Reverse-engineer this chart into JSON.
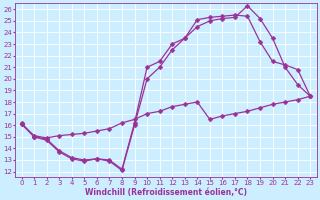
{
  "xlabel": "Windchill (Refroidissement éolien,°C)",
  "bg_color": "#cceeff",
  "grid_color": "#ffffff",
  "line_color": "#993399",
  "xlim": [
    -0.5,
    23.5
  ],
  "ylim": [
    11.5,
    26.5
  ],
  "xticks": [
    0,
    1,
    2,
    3,
    4,
    5,
    6,
    7,
    8,
    9,
    10,
    11,
    12,
    13,
    14,
    15,
    16,
    17,
    18,
    19,
    20,
    21,
    22,
    23
  ],
  "yticks": [
    12,
    13,
    14,
    15,
    16,
    17,
    18,
    19,
    20,
    21,
    22,
    23,
    24,
    25,
    26
  ],
  "series1_x": [
    0,
    1,
    2,
    3,
    4,
    5,
    6,
    7,
    8,
    9,
    10,
    11,
    12,
    13,
    14,
    15,
    16,
    17,
    18,
    19,
    20,
    21,
    22,
    23
  ],
  "series1_y": [
    16.2,
    15.0,
    14.8,
    13.8,
    13.2,
    13.0,
    13.1,
    13.0,
    12.2,
    16.2,
    21.0,
    21.5,
    23.0,
    23.5,
    24.5,
    25.0,
    25.2,
    25.3,
    26.3,
    25.2,
    23.5,
    21.0,
    19.5,
    18.5
  ],
  "series2_x": [
    0,
    1,
    2,
    3,
    4,
    5,
    6,
    7,
    8,
    9,
    10,
    11,
    12,
    13,
    14,
    15,
    16,
    17,
    18,
    19,
    20,
    21,
    22,
    23
  ],
  "series2_y": [
    16.1,
    15.0,
    14.7,
    13.7,
    13.1,
    12.9,
    13.1,
    12.9,
    12.1,
    16.0,
    20.0,
    21.0,
    22.5,
    23.5,
    25.1,
    25.3,
    25.4,
    25.5,
    25.4,
    23.2,
    21.5,
    21.2,
    20.8,
    18.5
  ],
  "series3_x": [
    0,
    1,
    2,
    3,
    4,
    5,
    6,
    7,
    8,
    9,
    10,
    11,
    12,
    13,
    14,
    15,
    16,
    17,
    18,
    19,
    20,
    21,
    22,
    23
  ],
  "series3_y": [
    16.1,
    15.1,
    14.9,
    15.1,
    15.2,
    15.3,
    15.5,
    15.7,
    16.2,
    16.5,
    17.0,
    17.2,
    17.6,
    17.8,
    18.0,
    16.5,
    16.8,
    17.0,
    17.2,
    17.5,
    17.8,
    18.0,
    18.2,
    18.5
  ],
  "marker_size": 2.5,
  "line_width": 0.9,
  "tick_fontsize": 5.0,
  "xlabel_fontsize": 5.5
}
